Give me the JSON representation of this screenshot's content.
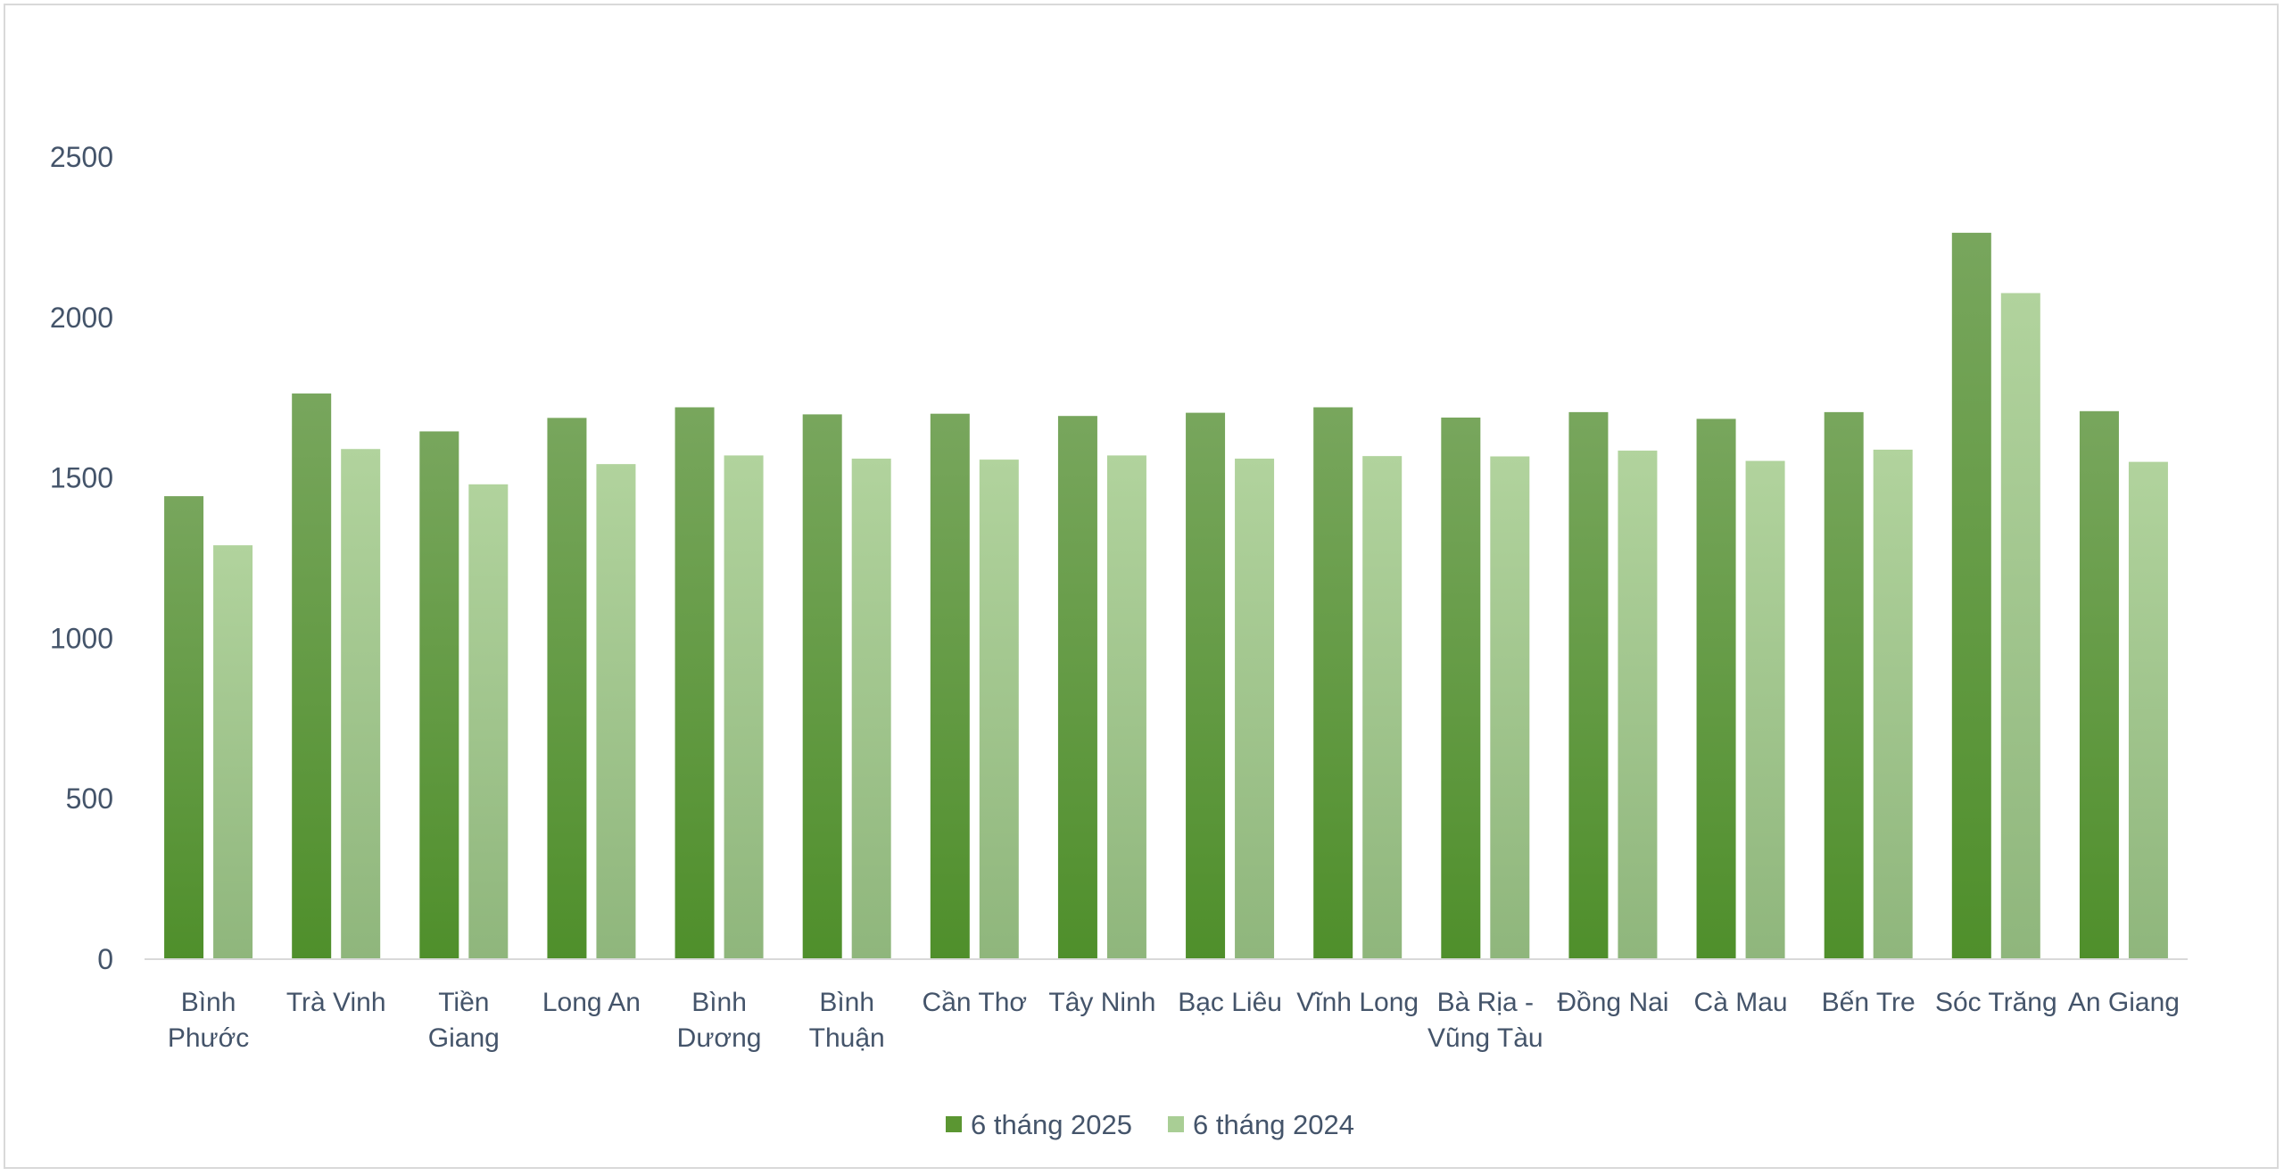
{
  "chart_data": {
    "type": "bar",
    "categories": [
      [
        "Bình",
        "Phước"
      ],
      [
        "Trà Vinh"
      ],
      [
        "Tiền",
        "Giang"
      ],
      [
        "Long An"
      ],
      [
        "Bình",
        "Dương"
      ],
      [
        "Bình",
        "Thuận"
      ],
      [
        "Cần Thơ"
      ],
      [
        "Tây Ninh"
      ],
      [
        "Bạc Liêu"
      ],
      [
        "Vĩnh Long"
      ],
      [
        "Bà Rịa -",
        "Vũng Tàu"
      ],
      [
        "Đồng Nai"
      ],
      [
        "Cà Mau"
      ],
      [
        "Bến Tre"
      ],
      [
        "Sóc Trăng"
      ],
      [
        "An Giang"
      ]
    ],
    "series": [
      {
        "name": "6 tháng 2025",
        "color": "#5b9632",
        "values": [
          1443,
          1763,
          1645,
          1687,
          1720,
          1698,
          1700,
          1693,
          1703,
          1720,
          1688,
          1705,
          1684,
          1705,
          2264,
          1708
        ]
      },
      {
        "name": "6 tháng 2024",
        "color": "#a9ce95",
        "values": [
          1290,
          1590,
          1480,
          1543,
          1570,
          1560,
          1557,
          1570,
          1560,
          1568,
          1567,
          1585,
          1553,
          1588,
          2076,
          1550
        ]
      }
    ],
    "yticks": [
      0,
      500,
      1000,
      1500,
      2000,
      2500
    ],
    "ylim": [
      0,
      2500
    ],
    "xlabel": "",
    "ylabel": "",
    "title": "",
    "grid": false,
    "legend_position": "bottom"
  }
}
